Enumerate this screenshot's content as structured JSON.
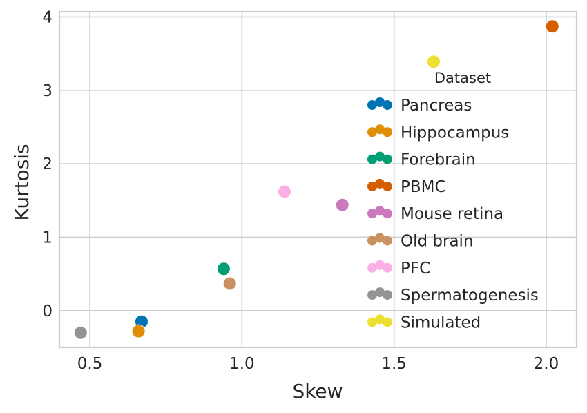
{
  "chart_data": {
    "type": "scatter",
    "xlabel": "Skew",
    "ylabel": "Kurtosis",
    "xlim": [
      0.4,
      2.1
    ],
    "ylim": [
      -0.5,
      4.07
    ],
    "x_ticks": [
      0.5,
      1.0,
      1.5,
      2.0
    ],
    "x_tick_labels": [
      "0.5",
      "1.0",
      "1.5",
      "2.0"
    ],
    "y_ticks": [
      0,
      1,
      2,
      3,
      4
    ],
    "y_tick_labels": [
      "0",
      "1",
      "2",
      "3",
      "4"
    ],
    "grid": true,
    "legend": {
      "title": "Dataset",
      "placement": "right"
    },
    "series": [
      {
        "name": "Pancreas",
        "color": "#0173b2",
        "x": 0.67,
        "y": -0.15
      },
      {
        "name": "Hippocampus",
        "color": "#de8f05",
        "x": 0.66,
        "y": -0.28
      },
      {
        "name": "Forebrain",
        "color": "#029e73",
        "x": 0.94,
        "y": 0.57
      },
      {
        "name": "PBMC",
        "color": "#d55e00",
        "x": 2.02,
        "y": 3.87
      },
      {
        "name": "Mouse retina",
        "color": "#cc78bc",
        "x": 1.33,
        "y": 1.44
      },
      {
        "name": "Old brain",
        "color": "#ca9161",
        "x": 0.96,
        "y": 0.37
      },
      {
        "name": "PFC",
        "color": "#fbafe4",
        "x": 1.14,
        "y": 1.62
      },
      {
        "name": "Spermatogenesis",
        "color": "#949494",
        "x": 0.47,
        "y": -0.3
      },
      {
        "name": "Simulated",
        "color": "#ece133",
        "x": 1.63,
        "y": 3.39
      }
    ]
  }
}
